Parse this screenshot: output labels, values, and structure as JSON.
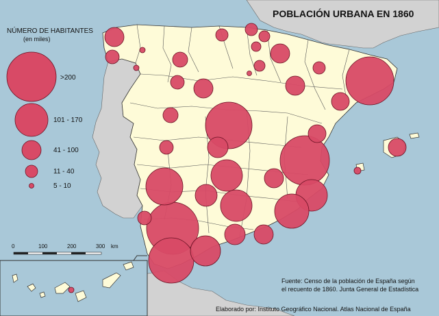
{
  "map": {
    "title": "POBLACIÓN URBANA EN 1860",
    "legend": {
      "title": "NÚMERO DE HABITANTES",
      "subtitle": "(en miles)",
      "classes": [
        {
          "label": ">200"
        },
        {
          "label": "101 - 170"
        },
        {
          "label": "41 - 100"
        },
        {
          "label": "11 - 40"
        },
        {
          "label": "5 - 10"
        }
      ]
    },
    "scale_bar": {
      "ticks": [
        "0",
        "100",
        "200",
        "300"
      ],
      "unit": "km"
    },
    "source_lines": [
      "Fuente: Censo de la población de España según",
      "el recuento de 1860. Junta General de Estadística"
    ],
    "credit": "Elaborado por: Instituto Geográfico Nacional. Atlas Nacional de España",
    "colors": {
      "sea": "#a9c8d8",
      "neighbor_land": "#d2d2d2",
      "spain_land": "#fefbd8",
      "symbol_fill": "#d84a66",
      "symbol_stroke": "#6a1224"
    }
  }
}
